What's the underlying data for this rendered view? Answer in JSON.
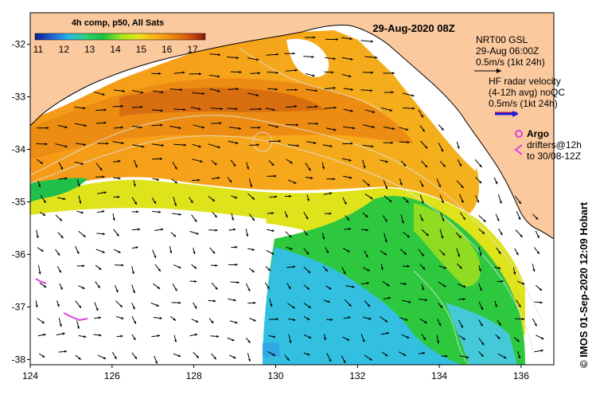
{
  "colorbar": {
    "title": "4h comp, p50, All Sats",
    "ticks": [
      "11",
      "12",
      "13",
      "14",
      "15",
      "16",
      "17"
    ],
    "stops": [
      "#0b1a8f",
      "#1e64d6",
      "#29b9e6",
      "#2fd27a",
      "#16c23e",
      "#9ce41b",
      "#e8e61a",
      "#f7b21a",
      "#f08a12",
      "#d9560c",
      "#8e1a0c"
    ]
  },
  "map_title": "29-Aug-2020 08Z",
  "legend": {
    "nrt_line1": "NRT00 GSL",
    "nrt_line2": "29-Aug 06:00Z",
    "nrt_line3": "0.5m/s (1kt 24h)",
    "hf_line1": "HF radar velocity",
    "hf_line2": "(4-12h avg) noQC",
    "hf_line3": "0.5m/s (1kt 24h)",
    "argo": "Argo",
    "drifters_line1": "drifters@12h",
    "drifters_line2": "to 30/08-12Z"
  },
  "axes": {
    "x_ticks": [
      "124",
      "126",
      "128",
      "130",
      "132",
      "134",
      "136"
    ],
    "y_ticks": [
      "-32",
      "-33",
      "-34",
      "-35",
      "-36",
      "-37",
      "-38"
    ],
    "xlim": [
      124,
      136.8
    ],
    "ylim": [
      -38.1,
      -31.4
    ]
  },
  "credit": "© IMOS 01-Sep-2020 12:09 Hobart",
  "colors": {
    "land": "#fbc99e",
    "no_data": "#ffffff",
    "argo": "#e040e0",
    "hf_arrow": "#1a1ae0",
    "hf_arrow_line": "#e01a1a"
  }
}
